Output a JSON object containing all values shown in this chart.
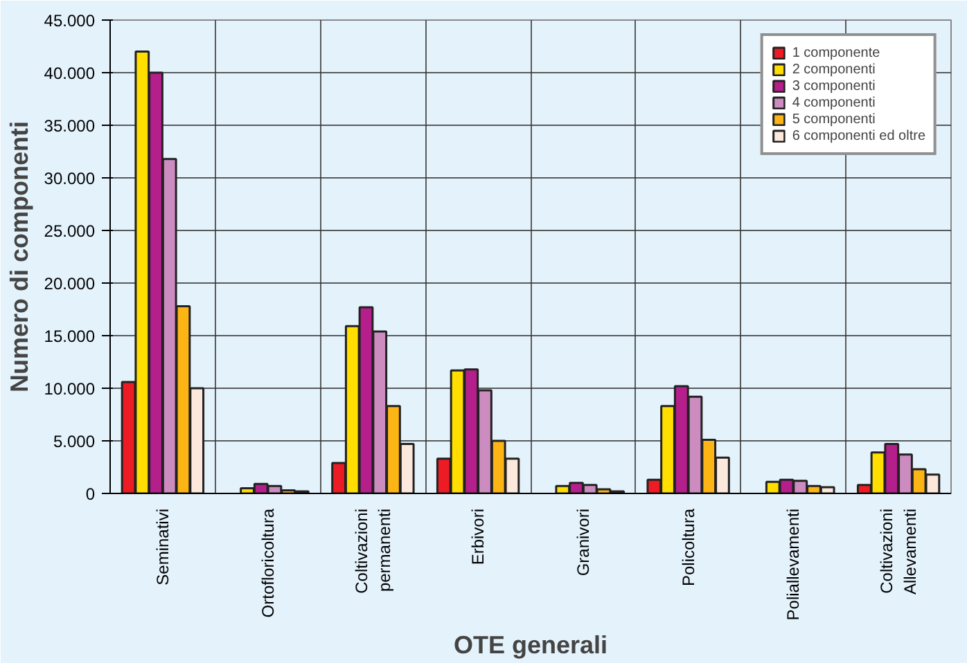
{
  "chart_data": {
    "type": "bar",
    "xlabel": "OTE generali",
    "ylabel": "Numero di componenti",
    "categories": [
      "Seminativi",
      "Ortofloricoltura",
      "Coltivazioni\npermanenti",
      "Erbivori",
      "Granivori",
      "Policoltura",
      "Poliallevamenti",
      "Coltivazioni\nAllevamenti"
    ],
    "series": [
      {
        "name": "1 componente",
        "color": "#ed1c24",
        "values": [
          10600,
          null,
          2900,
          3300,
          null,
          1300,
          null,
          800
        ]
      },
      {
        "name": "2 componenti",
        "color": "#ffde00",
        "values": [
          42000,
          500,
          15900,
          11700,
          700,
          8300,
          1100,
          3900
        ]
      },
      {
        "name": "3 componenti",
        "color": "#b51f8c",
        "values": [
          40000,
          900,
          17700,
          11800,
          1000,
          10200,
          1300,
          4700
        ]
      },
      {
        "name": "4 componenti",
        "color": "#cc8cc0",
        "values": [
          31800,
          700,
          15400,
          9800,
          800,
          9200,
          1200,
          3700
        ]
      },
      {
        "name": "5 componenti",
        "color": "#fdb515",
        "values": [
          17800,
          300,
          8300,
          5000,
          400,
          5100,
          700,
          2300
        ]
      },
      {
        "name": "6 componenti ed oltre",
        "color": "#fde8dc",
        "values": [
          10000,
          200,
          4700,
          3300,
          200,
          3400,
          600,
          1800
        ]
      }
    ],
    "ylim": [
      0,
      45000
    ],
    "yticks": [
      0,
      {
        "value": 5000,
        "label": "5.000"
      },
      {
        "value": 10000,
        "label": "10.000"
      },
      {
        "value": 15000,
        "label": "15.000"
      },
      {
        "value": 20000,
        "label": "20.000"
      },
      {
        "value": 25000,
        "label": "25.000"
      },
      {
        "value": 30000,
        "label": "30.000"
      },
      {
        "value": 35000,
        "label": "35.000"
      },
      {
        "value": 40000,
        "label": "40.000"
      },
      {
        "value": 45000,
        "label": "45.000"
      }
    ],
    "grid": true,
    "legend": "top right"
  }
}
